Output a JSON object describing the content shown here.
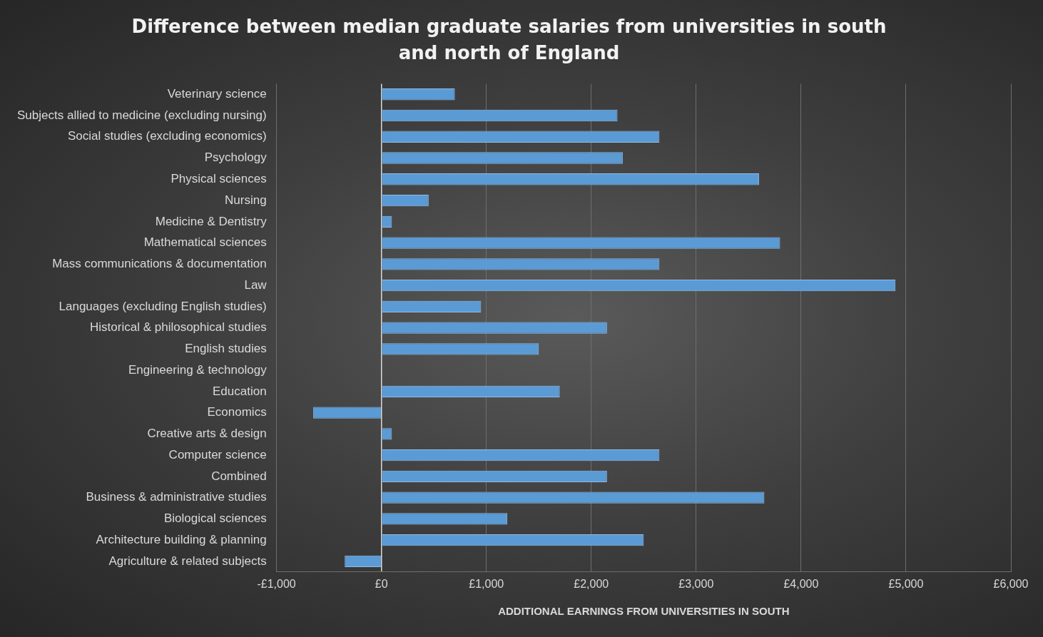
{
  "chart_data": {
    "type": "bar",
    "orientation": "horizontal",
    "title": [
      "Difference between median graduate salaries from universities in south",
      "and north of England"
    ],
    "x_label": "ADDITIONAL EARNINGS FROM UNIVERSITIES IN SOUTH",
    "categories": [
      "Veterinary science",
      "Subjects allied to medicine (excluding nursing)",
      "Social studies (excluding economics)",
      "Psychology",
      "Physical sciences",
      "Nursing",
      "Medicine & Dentistry",
      "Mathematical sciences",
      "Mass communications & documentation",
      "Law",
      "Languages (excluding English studies)",
      "Historical & philosophical studies",
      "English studies",
      "Engineering & technology",
      "Education",
      "Economics",
      "Creative arts & design",
      "Computer science",
      "Combined",
      "Business & administrative studies",
      "Biological sciences",
      "Architecture building & planning",
      "Agriculture & related subjects"
    ],
    "values": [
      700,
      2250,
      2650,
      2300,
      3600,
      450,
      100,
      3800,
      2650,
      4900,
      950,
      2150,
      1500,
      0,
      1700,
      -650,
      100,
      2650,
      2150,
      3650,
      1200,
      2500,
      -350
    ],
    "color": "#5b9bd5",
    "xlim": [
      -1000,
      6000
    ],
    "xticks": [
      {
        "value": -1000,
        "label": "-£1,000"
      },
      {
        "value": 0,
        "label": "£0"
      },
      {
        "value": 1000,
        "label": "£1,000"
      },
      {
        "value": 2000,
        "label": "£2,000"
      },
      {
        "value": 3000,
        "label": "£3,000"
      },
      {
        "value": 4000,
        "label": "£4,000"
      },
      {
        "value": 5000,
        "label": "£5,000"
      },
      {
        "value": 6000,
        "label": "£6,000"
      }
    ],
    "grid": true,
    "data_labels": false
  }
}
